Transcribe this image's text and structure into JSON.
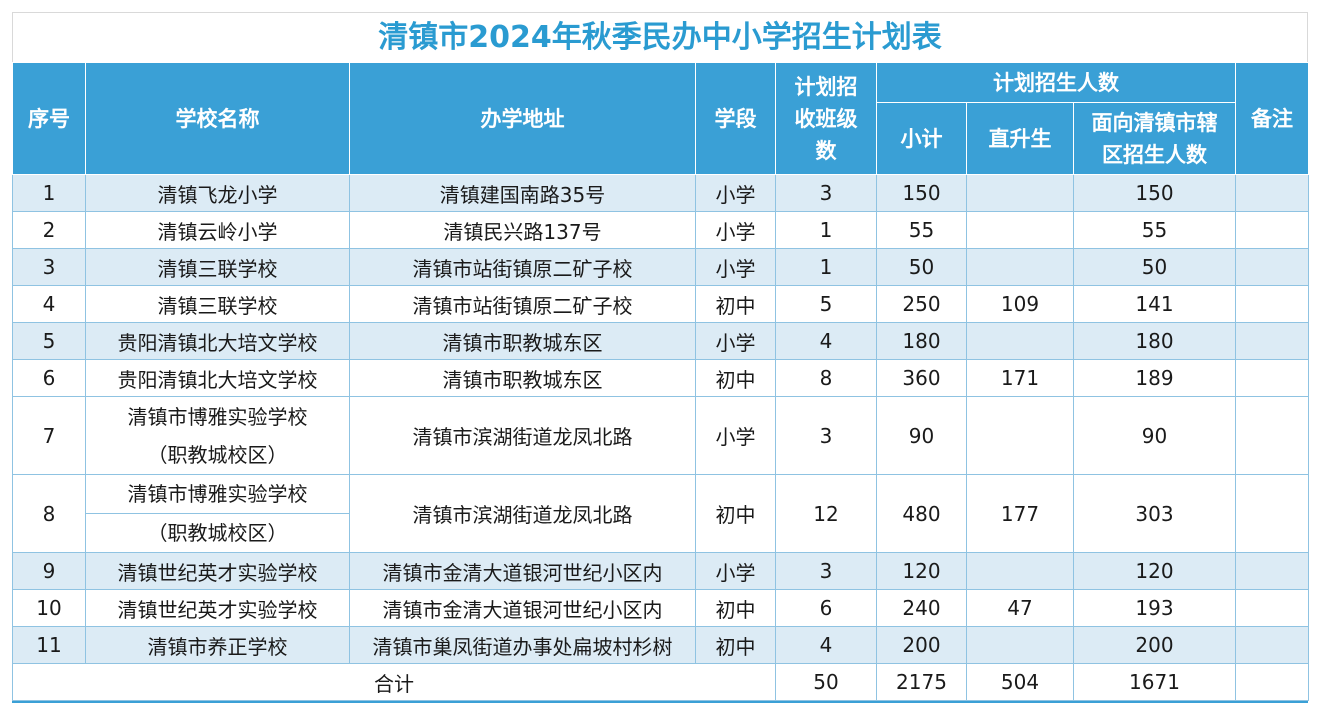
{
  "title": "清镇市2024年秋季民办中小学招生计划表",
  "headers": {
    "seq": "序号",
    "school": "学校名称",
    "address": "办学地址",
    "stage": "学段",
    "classes": "计划招收班级数",
    "plan_group": "计划招生人数",
    "subtotal": "小计",
    "direct": "直升生",
    "district": "面向清镇市辖区招生人数",
    "remarks": "备注"
  },
  "rows": [
    {
      "seq": "1",
      "school": "清镇飞龙小学",
      "address": "清镇建国南路35号",
      "stage": "小学",
      "classes": "3",
      "subtotal": "150",
      "direct": "",
      "district": "150",
      "remarks": ""
    },
    {
      "seq": "2",
      "school": "清镇云岭小学",
      "address": "清镇民兴路137号",
      "stage": "小学",
      "classes": "1",
      "subtotal": "55",
      "direct": "",
      "district": "55",
      "remarks": ""
    },
    {
      "seq": "3",
      "school": "清镇三联学校",
      "address": "清镇市站街镇原二矿子校",
      "stage": "小学",
      "classes": "1",
      "subtotal": "50",
      "direct": "",
      "district": "50",
      "remarks": ""
    },
    {
      "seq": "4",
      "school": "清镇三联学校",
      "address": "清镇市站街镇原二矿子校",
      "stage": "初中",
      "classes": "5",
      "subtotal": "250",
      "direct": "109",
      "district": "141",
      "remarks": ""
    },
    {
      "seq": "5",
      "school": "贵阳清镇北大培文学校",
      "address": "清镇市职教城东区",
      "stage": "小学",
      "classes": "4",
      "subtotal": "180",
      "direct": "",
      "district": "180",
      "remarks": ""
    },
    {
      "seq": "6",
      "school": "贵阳清镇北大培文学校",
      "address": "清镇市职教城东区",
      "stage": "初中",
      "classes": "8",
      "subtotal": "360",
      "direct": "171",
      "district": "189",
      "remarks": ""
    },
    {
      "seq": "7",
      "school": "清镇市博雅实验学校",
      "school_line2": "（职教城校区）",
      "address": "清镇市滨湖街道龙凤北路",
      "stage": "小学",
      "classes": "3",
      "subtotal": "90",
      "direct": "",
      "district": "90",
      "remarks": ""
    },
    {
      "seq": "8",
      "school": "清镇市博雅实验学校",
      "school_line2": "（职教城校区）",
      "address": "清镇市滨湖街道龙凤北路",
      "stage": "初中",
      "classes": "12",
      "subtotal": "480",
      "direct": "177",
      "district": "303",
      "remarks": ""
    },
    {
      "seq": "9",
      "school": "清镇世纪英才实验学校",
      "address": "清镇市金清大道银河世纪小区内",
      "stage": "小学",
      "classes": "3",
      "subtotal": "120",
      "direct": "",
      "district": "120",
      "remarks": ""
    },
    {
      "seq": "10",
      "school": "清镇世纪英才实验学校",
      "address": "清镇市金清大道银河世纪小区内",
      "stage": "初中",
      "classes": "6",
      "subtotal": "240",
      "direct": "47",
      "district": "193",
      "remarks": ""
    },
    {
      "seq": "11",
      "school": "清镇市养正学校",
      "address": "清镇市巢凤街道办事处扁坡村杉树",
      "stage": "初中",
      "classes": "4",
      "subtotal": "200",
      "direct": "",
      "district": "200",
      "remarks": ""
    }
  ],
  "total": {
    "label": "合计",
    "classes": "50",
    "subtotal": "2175",
    "direct": "504",
    "district": "1671",
    "remarks": ""
  },
  "colors": {
    "title": "#2a9bd1",
    "header_bg": "#3aa0d6",
    "row_alt_bg": "#dcebf5",
    "grid": "#8fc3e2"
  }
}
